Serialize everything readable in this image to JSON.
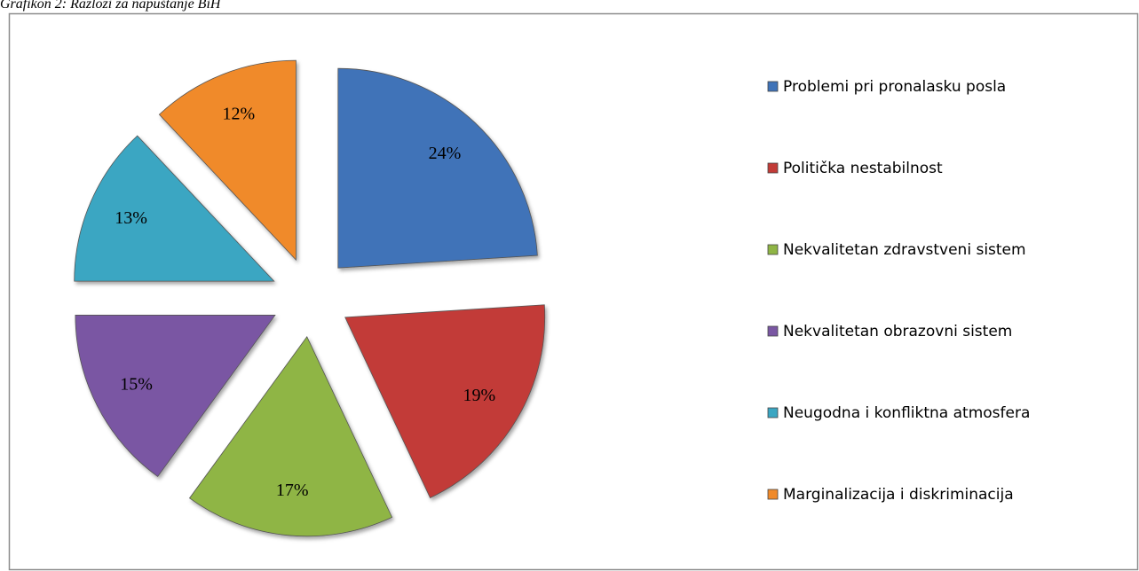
{
  "chart_data": {
    "type": "pie",
    "title": "Grafikon 2: Razlozi za napuštanje BiH",
    "categories": [
      "Problemi pri pronalasku posla",
      "Politička nestabilnost",
      "Nekvalitetan zdravstveni sistem",
      "Nekvalitetan obrazovni sistem",
      "Neugodna i konfliktna atmosfera",
      "Marginalizacija i diskriminacija"
    ],
    "values": [
      24,
      19,
      17,
      15,
      13,
      12
    ],
    "value_labels": [
      "24%",
      "19%",
      "17%",
      "15%",
      "13%",
      "12%"
    ],
    "colors": [
      "#3f73b8",
      "#c23b37",
      "#8fb545",
      "#7a57a3",
      "#3aa6c2",
      "#f08a2a"
    ],
    "legend": "right"
  }
}
